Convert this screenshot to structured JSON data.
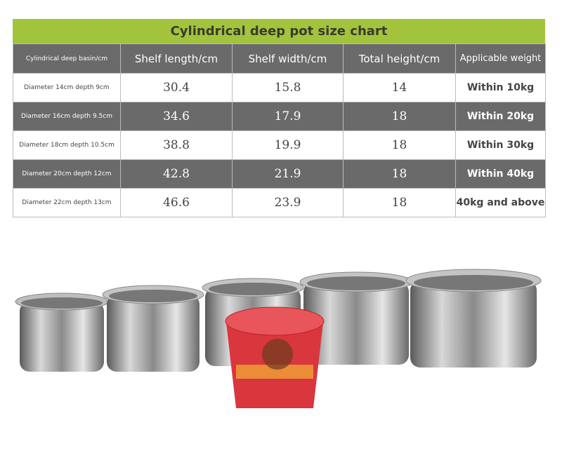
{
  "title": "Cylindrical deep pot size chart",
  "table": {
    "header": [
      "Cylindrical deep basin/cm",
      "Shelf length/cm",
      "Shelf width/cm",
      "Total height/cm",
      "Applicable weight"
    ],
    "rows": [
      [
        "Diameter 14cm depth 9cm",
        30.4,
        15.8,
        14,
        "Within 10kg"
      ],
      [
        "Diameter 16cm depth 9.5cm",
        34.6,
        17.9,
        18,
        "Within 20kg"
      ],
      [
        "Diameter 18cm depth 10.5cm",
        38.8,
        19.9,
        18,
        "Within 30kg"
      ],
      [
        "Diameter 20cm depth 12cm",
        42.8,
        21.9,
        18,
        "Within 40kg"
      ],
      [
        "Diameter 22cm depth 13cm",
        46.6,
        23.9,
        18,
        "40kg and above"
      ]
    ]
  }
}
